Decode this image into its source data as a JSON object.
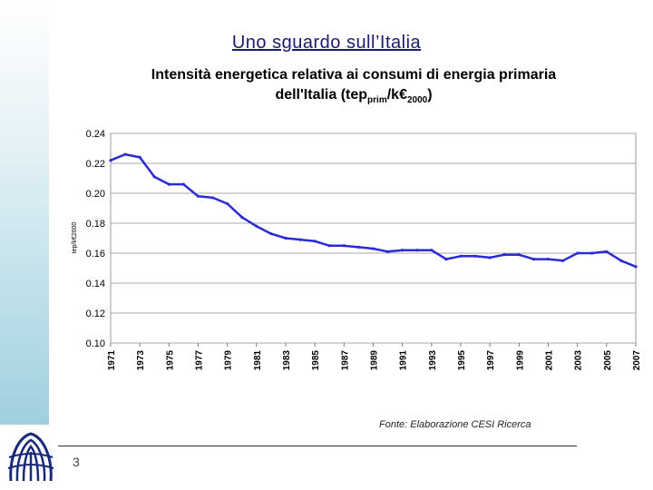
{
  "slide": {
    "title": "Uno sguardo sull’Italia",
    "source": "Fonte: Elaborazione CESI Ricerca",
    "page_number": "3"
  },
  "chart_data": {
    "type": "line",
    "title_line1": "Intensità energetica relativa ai consumi di energia primaria",
    "title_line2_main": "dell'Italia (tep",
    "title_sub1": "prim",
    "title_line2_mid": "/k€",
    "title_sub2": "2000",
    "title_line2_end": ")",
    "ylabel": "tep/k€2000",
    "xlabel": "",
    "ylim": [
      0.1,
      0.24
    ],
    "yticks": [
      "0.24",
      "0.22",
      "0.20",
      "0.18",
      "0.16",
      "0.14",
      "0.12",
      "0.10"
    ],
    "x_tick_labels": [
      "1971",
      "1973",
      "1975",
      "1977",
      "1979",
      "1981",
      "1983",
      "1985",
      "1987",
      "1989",
      "1991",
      "1993",
      "1995",
      "1997",
      "1999",
      "2001",
      "2003",
      "2005",
      "2007"
    ],
    "grid": true,
    "line_color": "#2b2bd6",
    "series": [
      {
        "name": "Intensità energetica",
        "x": [
          1971,
          1972,
          1973,
          1974,
          1975,
          1976,
          1977,
          1978,
          1979,
          1980,
          1981,
          1982,
          1983,
          1984,
          1985,
          1986,
          1987,
          1988,
          1989,
          1990,
          1991,
          1992,
          1993,
          1994,
          1995,
          1996,
          1997,
          1998,
          1999,
          2000,
          2001,
          2002,
          2003,
          2004,
          2005,
          2006,
          2007
        ],
        "values": [
          0.222,
          0.226,
          0.224,
          0.211,
          0.206,
          0.206,
          0.198,
          0.197,
          0.193,
          0.184,
          0.178,
          0.173,
          0.17,
          0.169,
          0.168,
          0.165,
          0.165,
          0.164,
          0.163,
          0.161,
          0.162,
          0.162,
          0.162,
          0.156,
          0.158,
          0.158,
          0.157,
          0.159,
          0.159,
          0.156,
          0.156,
          0.155,
          0.16,
          0.16,
          0.161,
          0.155,
          0.151
        ]
      }
    ]
  }
}
